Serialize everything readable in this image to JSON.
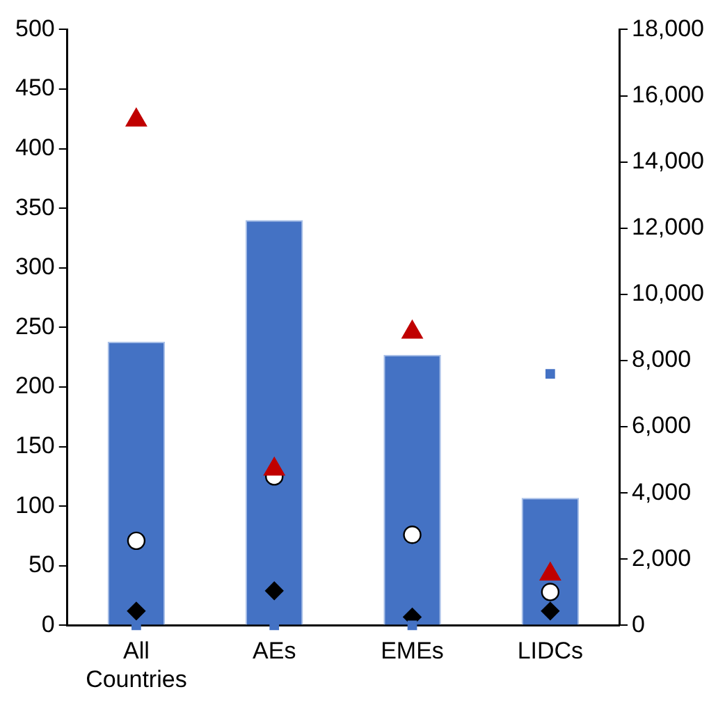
{
  "chart_data": {
    "type": "bar",
    "categories": [
      "All Countries",
      "AEs",
      "EMEs",
      "LIDCs"
    ],
    "series": [
      {
        "color": "#4472c4",
        "values": [
          238,
          340,
          227,
          107
        ]
      },
      {
        "type": "scatter",
        "marker": "square",
        "color": "#4472c4",
        "values": [
          0,
          0,
          0,
          211
        ]
      },
      {
        "type": "scatter",
        "marker": "triangle",
        "color": "#c00000",
        "values": [
          424,
          131,
          246,
          43
        ]
      },
      {
        "type": "scatter",
        "marker": "circle",
        "color": "#ffffff",
        "values": [
          71,
          125,
          76,
          28
        ]
      },
      {
        "type": "scatter",
        "marker": "diamond",
        "color": "#000000",
        "values": [
          12,
          29,
          7,
          12
        ]
      }
    ],
    "ylim": [
      0,
      500
    ],
    "yticks": [
      0,
      50,
      100,
      150,
      200,
      250,
      300,
      350,
      400,
      450,
      500
    ],
    "y2lim": [
      0,
      18000
    ],
    "y2ticks": [
      0,
      {
        "value": 2000,
        "label": "2,000"
      },
      {
        "value": 4000,
        "label": "4,000"
      },
      {
        "value": 6000,
        "label": "6,000"
      },
      {
        "value": 8000,
        "label": "8,000"
      },
      {
        "value": 10000,
        "label": "10,000"
      },
      {
        "value": 12000,
        "label": "12,000"
      },
      {
        "value": 14000,
        "label": "14,000"
      },
      {
        "value": 16000,
        "label": "16,000"
      },
      {
        "value": 18000,
        "label": "18,000"
      }
    ],
    "grid": false,
    "legend": false
  }
}
